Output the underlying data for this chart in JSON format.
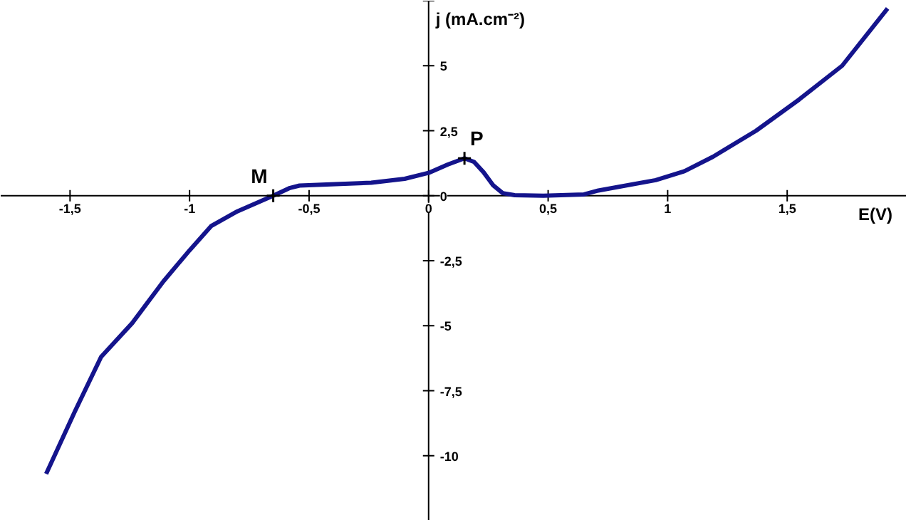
{
  "chart_data": {
    "type": "line",
    "xlabel": "E(V)",
    "ylabel": "j (mA.cm⁻²)",
    "xlim": [
      -1.79,
      2.0
    ],
    "ylim": [
      -12.5,
      7.5
    ],
    "xticks": [
      {
        "value": -1.5,
        "label": "-1,5"
      },
      -1,
      {
        "value": -0.5,
        "label": "-0,5"
      },
      {
        "value": 0,
        "label": "0"
      },
      {
        "value": 0.5,
        "label": "0,5"
      },
      1,
      {
        "value": 1.5,
        "label": "1,5"
      },
      {
        "value": 2,
        "label": null
      }
    ],
    "yticks": [
      {
        "value": -12.5,
        "label": null
      },
      -10,
      {
        "value": -7.5,
        "label": "-7,5"
      },
      -5,
      {
        "value": -2.5,
        "label": "-2,5"
      },
      {
        "value": 0,
        "label": "0"
      },
      {
        "value": 2.5,
        "label": "2,5"
      },
      5,
      {
        "value": 7.5,
        "label": null
      }
    ],
    "x": [
      -1.6,
      -1.48,
      -1.37,
      -1.24,
      -1.11,
      -1.0,
      -0.91,
      -0.8,
      -0.65,
      -0.58,
      -0.54,
      -0.24,
      -0.1,
      0,
      0.08,
      0.15,
      0.19,
      0.23,
      0.27,
      0.31,
      0.36,
      0.48,
      0.65,
      0.71,
      0.95,
      1.07,
      1.19,
      1.37,
      1.55,
      1.73,
      1.92
    ],
    "series": [
      {
        "color": "#14148c",
        "values": [
          -10.7,
          -8.3,
          -6.2,
          -4.9,
          -3.3,
          -2.1,
          -1.17,
          -0.6,
          0,
          0.3,
          0.39,
          0.5,
          0.65,
          0.88,
          1.2,
          1.44,
          1.3,
          0.9,
          0.4,
          0.1,
          0.02,
          0,
          0.05,
          0.2,
          0.6,
          0.94,
          1.5,
          2.5,
          3.7,
          5.0,
          7.2
        ]
      }
    ],
    "annotations": [
      {
        "text": "M",
        "x": -0.65,
        "y": 0
      },
      {
        "text": "P",
        "x": 0.15,
        "y": 1.44
      }
    ],
    "marker": "none",
    "line_style": "solid"
  }
}
